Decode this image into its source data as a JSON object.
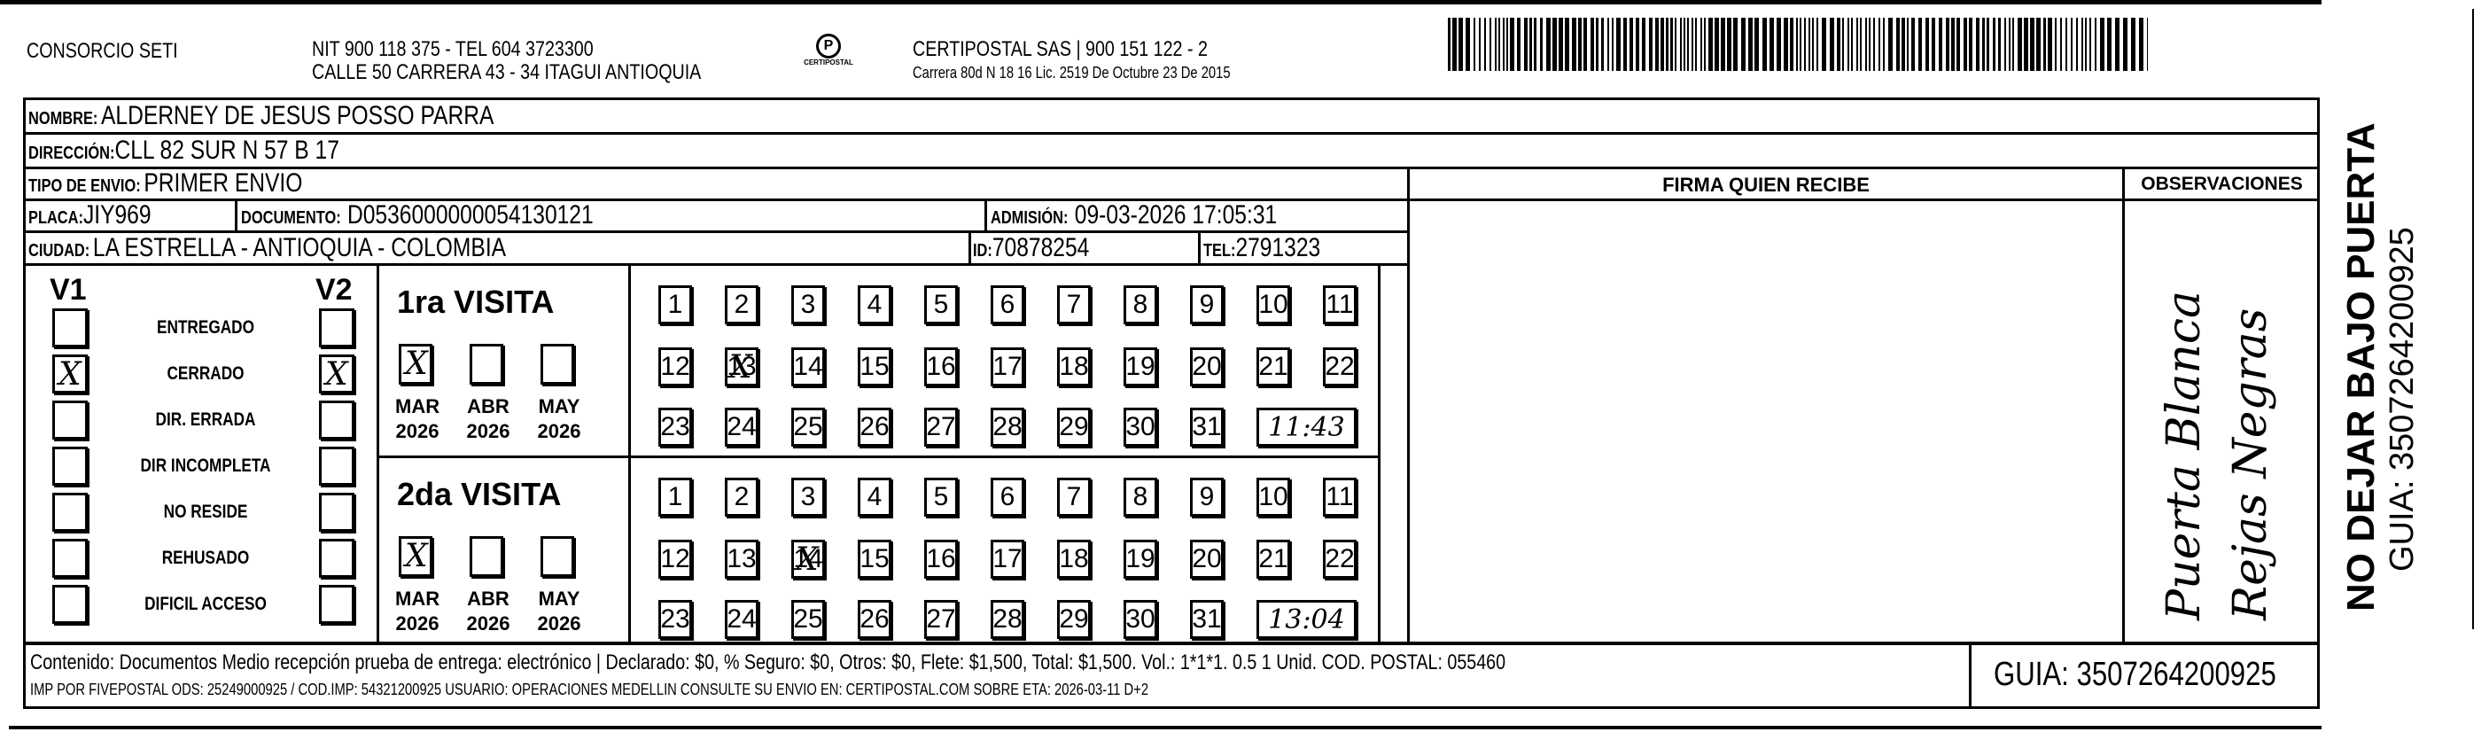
{
  "header": {
    "company": "CONSORCIO SETI",
    "nit_line": "NIT 900 118 375 - TEL 604 3723300",
    "address_line": "CALLE 50 CARRERA 43 - 34 ITAGUI ANTIOQUIA",
    "logo_text": "CERTIPOSTAL",
    "certipostal_line": "CERTIPOSTAL SAS | 900 151 122 - 2",
    "license_line": "Carrera 80d N 18 16  Lic. 2519 De Octubre 23 De 2015"
  },
  "recipient": {
    "name_label": "NOMBRE:",
    "name": "ALDERNEY DE JESUS POSSO PARRA",
    "address_label": "DIRECCIÓN:",
    "address": "CLL 82 SUR N 57 B 17",
    "type_label": "TIPO DE ENVIO:",
    "type": "PRIMER ENVIO",
    "plate_label": "PLACA:",
    "plate": "JIY969",
    "document_label": "DOCUMENTO:",
    "document": "D0536000000054130121",
    "admission_label": "ADMISIÓN:",
    "admission": "09-03-2026 17:05:31",
    "city_label": "CIUDAD:",
    "city": "LA ESTRELLA - ANTIOQUIA - COLOMBIA",
    "id_label": "ID:",
    "id": "70878254",
    "tel_label": "TEL:",
    "tel": "2791323"
  },
  "signature": {
    "header": "FIRMA QUIEN RECIBE"
  },
  "observations": {
    "header": "OBSERVACIONES",
    "handwritten": [
      "Puerta Blanca",
      "Rejas Negras"
    ]
  },
  "status": {
    "v1_label": "V1",
    "v2_label": "V2",
    "items": [
      {
        "label": "ENTREGADO",
        "v1": false,
        "v2": false
      },
      {
        "label": "CERRADO",
        "v1": true,
        "v2": true
      },
      {
        "label": "DIR. ERRADA",
        "v1": false,
        "v2": false
      },
      {
        "label": "DIR INCOMPLETA",
        "v1": false,
        "v2": false
      },
      {
        "label": "NO RESIDE",
        "v1": false,
        "v2": false
      },
      {
        "label": "REHUSADO",
        "v1": false,
        "v2": false
      },
      {
        "label": "DIFICIL ACCESO",
        "v1": false,
        "v2": false
      }
    ]
  },
  "visits": [
    {
      "title": "1ra VISITA",
      "months": [
        {
          "m": "MAR",
          "y": "2026",
          "checked": true
        },
        {
          "m": "ABR",
          "y": "2026",
          "checked": false
        },
        {
          "m": "MAY",
          "y": "2026",
          "checked": false
        }
      ],
      "checked_day": 13,
      "time": "11:43"
    },
    {
      "title": "2da VISITA",
      "months": [
        {
          "m": "MAR",
          "y": "2026",
          "checked": true
        },
        {
          "m": "ABR",
          "y": "2026",
          "checked": false
        },
        {
          "m": "MAY",
          "y": "2026",
          "checked": false
        }
      ],
      "checked_day": 14,
      "time": "13:04"
    }
  ],
  "footer": {
    "line1": "Contenido: Documentos Medio recepción prueba de entrega: electrónico | Declarado: $0, % Seguro: $0, Otros: $0, Flete: $1,500, Total: $1,500. Vol.: 1*1*1. 0.5  1 Unid. COD. POSTAL: 055460",
    "line2": "IMP POR FIVEPOSTAL ODS: 25249000925 / COD.IMP: 54321200925 USUARIO: OPERACIONES MEDELLIN CONSULTE SU ENVIO EN: CERTIPOSTAL.COM SOBRE ETA: 2026-03-11 D+2",
    "guia": "GUIA: 3507264200925"
  },
  "side": {
    "warning": "NO DEJAR BAJO PUERTA",
    "guia": "GUIA: 3507264200925"
  }
}
